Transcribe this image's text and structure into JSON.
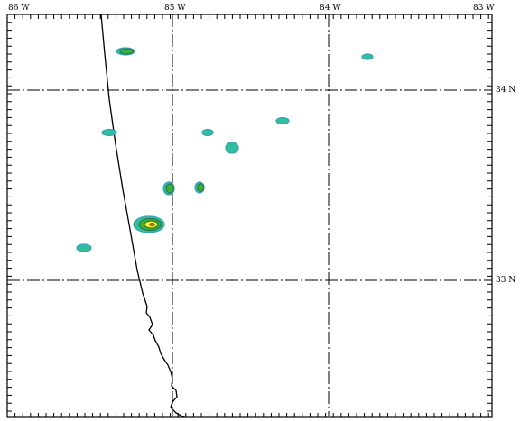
{
  "longitude_labels": [
    "86 W",
    "85 W",
    "84 W",
    "83 W"
  ],
  "latitude_labels": [
    "34 N",
    "33 N"
  ],
  "colors": {
    "frame": "#000000",
    "grid": "#000000",
    "border_line": "#000000",
    "contour_outer": "#3aa0c0",
    "contour_teal": "#2fbf9a",
    "contour_green": "#3fae3a",
    "contour_yellow": "#ffee22",
    "contour_orange": "#f58a1f"
  },
  "precip_cells": [
    {
      "name": "precip-cell-1",
      "levels": 2
    },
    {
      "name": "precip-cell-2",
      "levels": 1
    },
    {
      "name": "precip-cell-3",
      "levels": 1
    },
    {
      "name": "precip-cell-4",
      "levels": 1
    },
    {
      "name": "precip-cell-5",
      "levels": 1
    },
    {
      "name": "precip-cell-6",
      "levels": 1
    },
    {
      "name": "precip-cell-7",
      "levels": 2
    },
    {
      "name": "precip-cell-8",
      "levels": 2
    },
    {
      "name": "precip-cell-9",
      "levels": 1
    },
    {
      "name": "precip-cell-10",
      "levels": 4
    },
    {
      "name": "precip-cell-11",
      "levels": 1
    }
  ]
}
